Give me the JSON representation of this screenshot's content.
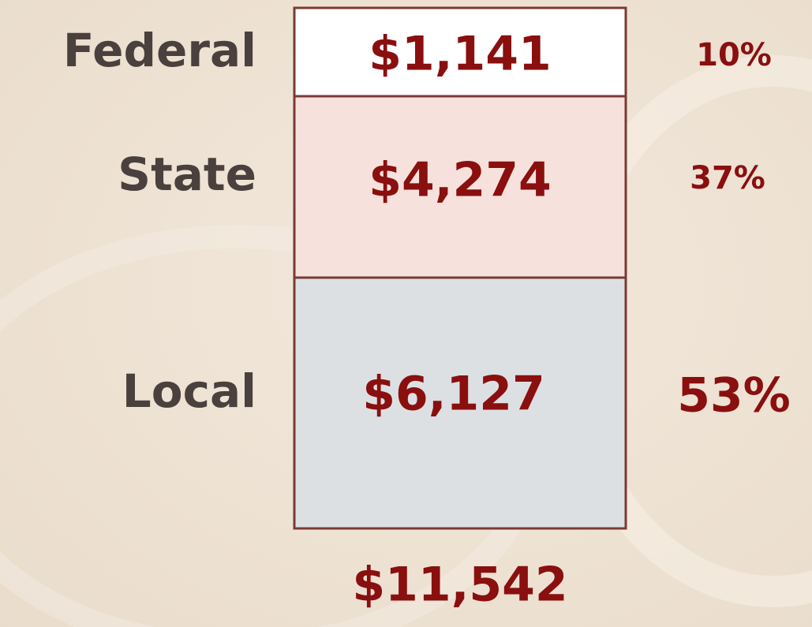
{
  "rows": [
    {
      "label": "Federal",
      "amount": "$1,141",
      "share": "10%"
    },
    {
      "label": "State",
      "amount": "$4,274",
      "share": "37%"
    },
    {
      "label": "Local",
      "amount": "$6,127",
      "share": "53%"
    }
  ],
  "total": "$11,542"
}
